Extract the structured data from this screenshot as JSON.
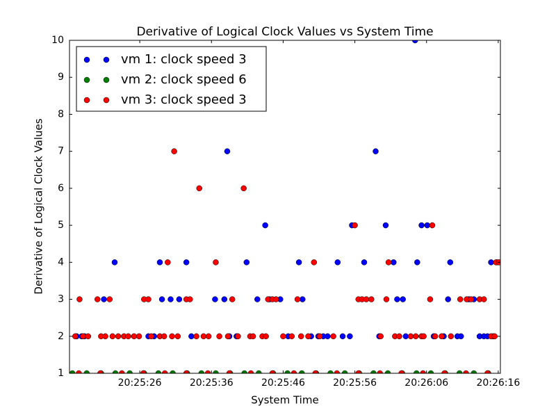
{
  "chart_data": {
    "type": "scatter",
    "title": "Derivative of Logical Clock Values vs System Time",
    "xlabel": "System Time",
    "ylabel": "Derivative of Logical Clock Values",
    "xlim": [
      73516.2,
      73576.3
    ],
    "ylim": [
      1,
      10
    ],
    "xticks": [
      {
        "value": 73526,
        "label": "20:25:26"
      },
      {
        "value": 73536,
        "label": "20:25:36"
      },
      {
        "value": 73546,
        "label": "20:25:46"
      },
      {
        "value": 73556,
        "label": "20:25:56"
      },
      {
        "value": 73566,
        "label": "20:26:06"
      },
      {
        "value": 73576,
        "label": "20:26:16"
      }
    ],
    "yticks": [
      1,
      2,
      3,
      4,
      5,
      6,
      7,
      8,
      9,
      10
    ],
    "legend": "upper left",
    "series": [
      {
        "name": "vm 1: clock speed 3",
        "color": "#0000ff",
        "x": [
          73517.2,
          73517.9,
          73518.3,
          73521.0,
          73522.5,
          73527.2,
          73528.0,
          73528.8,
          73529.1,
          73530.3,
          73531.5,
          73532.5,
          73533.2,
          73536.5,
          73537.8,
          73538.2,
          73538.5,
          73539.5,
          73540.9,
          73542.4,
          73543.5,
          73544.1,
          73545.6,
          73546.7,
          73548.2,
          73548.7,
          73549.9,
          73550.9,
          73551.6,
          73552.2,
          73553.6,
          73554.3,
          73555.3,
          73555.6,
          73557.3,
          73558.9,
          73559.4,
          73560.3,
          73561.4,
          73561.9,
          73562.7,
          73563.1,
          73564.4,
          73564.7,
          73565.3,
          73566.1,
          73567.0,
          73568.4,
          73569.0,
          73569.3,
          73570.3,
          73570.8,
          73571.9,
          73572.6,
          73573.4,
          73574.0,
          73574.5,
          73575.0,
          73575.3,
          73575.8
        ],
        "values": [
          2,
          2,
          2,
          3,
          4,
          2,
          2,
          4,
          3,
          3,
          3,
          4,
          2,
          3,
          3,
          7,
          2,
          2,
          4,
          3,
          5,
          3,
          3,
          2,
          4,
          3,
          2,
          2,
          2,
          2,
          4,
          2,
          2,
          5,
          4,
          7,
          2,
          5,
          4,
          3,
          3,
          2,
          10,
          4,
          5,
          5,
          2,
          2,
          3,
          4,
          2,
          2,
          3,
          3,
          2,
          2,
          2,
          4,
          2,
          4
        ]
      },
      {
        "name": "vm 2: clock speed 6",
        "color": "#007f00",
        "x": [
          73516.6,
          73518.6,
          73520.6,
          73522.6,
          73524.6,
          73526.6,
          73528.6,
          73530.6,
          73532.6,
          73534.6,
          73536.6,
          73538.6,
          73540.6,
          73542.6,
          73544.6,
          73546.6,
          73548.6,
          73550.6,
          73552.6,
          73554.6,
          73556.6,
          73558.6,
          73560.6,
          73562.6,
          73564.6,
          73566.6,
          73568.6,
          73570.6,
          73572.6,
          73574.6
        ],
        "values": [
          1,
          1,
          1,
          1,
          1,
          1,
          1,
          1,
          1,
          1,
          1,
          1,
          1,
          1,
          1,
          1,
          1,
          1,
          1,
          1,
          1,
          1,
          1,
          1,
          1,
          1,
          1,
          1,
          1,
          1
        ]
      },
      {
        "name": "vm 3: clock speed 3",
        "color": "#ff0000",
        "x": [
          73517.0,
          73517.6,
          73518.1,
          73518.8,
          73520.1,
          73520.6,
          73521.2,
          73521.8,
          73522.2,
          73523.0,
          73523.8,
          73524.4,
          73525.2,
          73525.9,
          73526.6,
          73527.2,
          73527.6,
          73528.8,
          73529.4,
          73529.9,
          73530.5,
          73530.8,
          73531.3,
          73532.5,
          73533.0,
          73533.9,
          73534.3,
          73534.9,
          73535.6,
          73536.6,
          73537.1,
          73538.3,
          73538.9,
          73539.7,
          73540.5,
          73541.4,
          73541.8,
          73543.1,
          73543.6,
          73543.9,
          73544.5,
          73545.0,
          73546.0,
          73547.2,
          73548.0,
          73548.5,
          73549.5,
          73550.3,
          73551.1,
          73553.0,
          73556.0,
          73556.5,
          73557.0,
          73557.6,
          73558.3,
          73559.6,
          73560.4,
          73560.7,
          73561.6,
          73562.2,
          73563.8,
          73564.5,
          73565.3,
          73565.6,
          73566.5,
          73566.8,
          73567.2,
          73568.1,
          73569.4,
          73570.7,
          73571.6,
          73572.2,
          73573.4,
          73574.0,
          73575.0,
          73575.5,
          73575.7,
          73576.1,
          73517.5,
          73520.5,
          73523.5,
          73526.5,
          73529.5,
          73532.5,
          73535.5,
          73538.5,
          73541.5,
          73544.5,
          73547.5,
          73550.5,
          73553.5,
          73556.5,
          73559.5,
          73562.5,
          73565.5,
          73568.5,
          73571.5,
          73574.5
        ],
        "values": [
          2,
          3,
          2,
          2,
          3,
          2,
          2,
          3,
          2,
          2,
          2,
          2,
          2,
          2,
          3,
          3,
          2,
          2,
          2,
          4,
          2,
          7,
          2,
          3,
          3,
          2,
          6,
          2,
          2,
          4,
          2,
          2,
          3,
          2,
          6,
          2,
          2,
          2,
          2,
          3,
          3,
          3,
          2,
          2,
          3,
          2,
          2,
          4,
          2,
          2,
          5,
          3,
          3,
          3,
          3,
          2,
          3,
          4,
          2,
          2,
          2,
          2,
          2,
          2,
          3,
          5,
          2,
          2,
          2,
          3,
          3,
          3,
          3,
          3,
          2,
          2,
          4,
          4,
          1,
          1,
          1,
          1,
          1,
          1,
          1,
          1,
          1,
          1,
          1,
          1,
          1,
          1,
          1,
          1,
          1,
          1,
          1,
          1
        ]
      }
    ]
  }
}
